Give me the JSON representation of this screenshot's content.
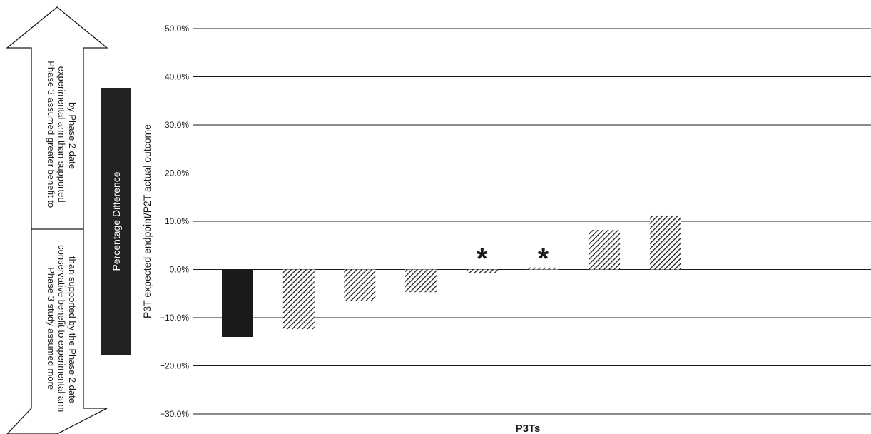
{
  "arrow": {
    "up_text": [
      "Phase 3 assumed greater benefit to",
      "experimental arm than supported",
      "by Phase 2 date"
    ],
    "down_text": [
      "Phase 3 study assumed more",
      "conservative benefit to experimental arm",
      "than supported by the Phase 2 date"
    ]
  },
  "side_box": {
    "label": "Percentage Difference"
  },
  "chart_data": {
    "type": "bar",
    "title": "",
    "xlabel": "P3Ts",
    "ylabel": "P3T expected endpoint/P2T actual outcome",
    "ylim": [
      -30,
      50
    ],
    "y_ticks": [
      50,
      40,
      30,
      20,
      10,
      0,
      -10,
      -20,
      -30
    ],
    "y_tick_labels": [
      "50.0%",
      "40.0%",
      "30.0%",
      "20.0%",
      "10.0%",
      "0.0%",
      "−10.0%",
      "−20.0%",
      "−30.0%"
    ],
    "grid": true,
    "legend": "none",
    "values": [
      -14.0,
      -12.4,
      -6.5,
      -4.7,
      -0.8,
      0.4,
      8.2,
      11.2
    ],
    "fill": [
      "solid",
      "hatched",
      "hatched",
      "hatched",
      "hatched",
      "hatched",
      "hatched",
      "hatched"
    ],
    "annotations": [
      "",
      "",
      "",
      "",
      "*",
      "*",
      "",
      ""
    ],
    "colors": {
      "bar": "#1a1a1a",
      "grid": "#1a1a1a",
      "box": "#222222"
    }
  }
}
